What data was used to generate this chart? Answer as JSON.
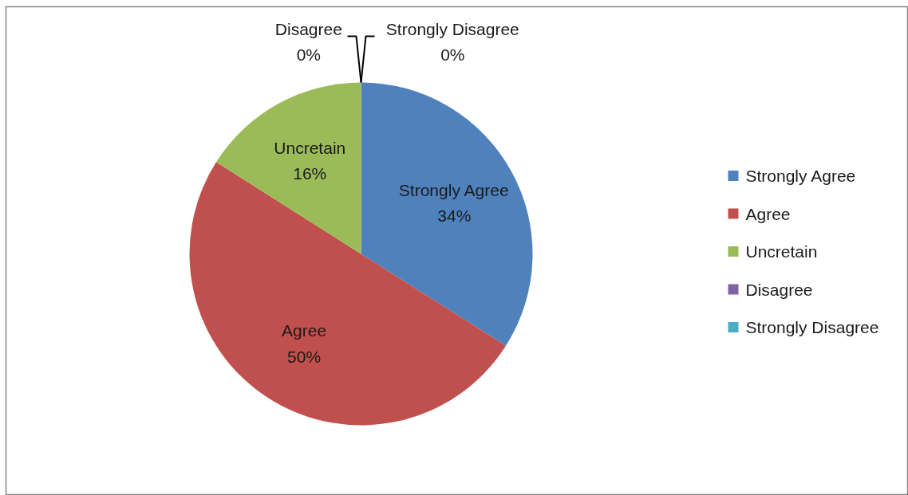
{
  "chart_data": {
    "type": "pie",
    "categories": [
      "Strongly Agree",
      "Agree",
      "Uncretain",
      "Disagree",
      "Strongly Disagree"
    ],
    "values": [
      34,
      50,
      16,
      0,
      0
    ],
    "colors": [
      "#4f81bd",
      "#c0504d",
      "#9bbb59",
      "#8064a2",
      "#4bacc6"
    ],
    "value_labels": [
      "34%",
      "50%",
      "16%",
      "0%",
      "0%"
    ],
    "legend": "right"
  }
}
